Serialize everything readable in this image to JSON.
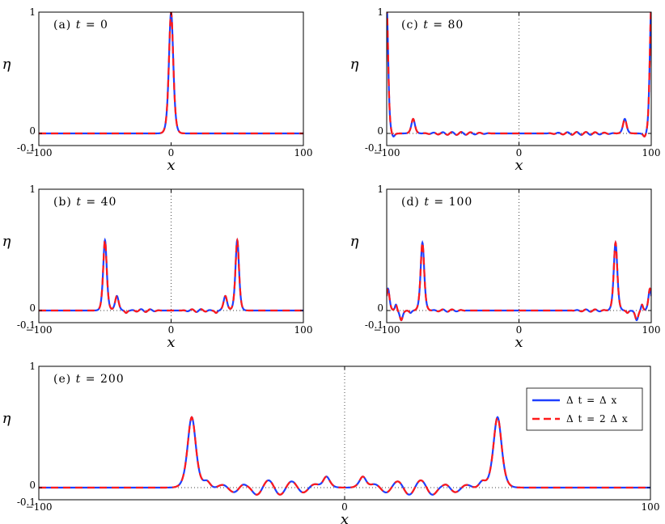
{
  "legend": {
    "series1": "Δ t  =  Δ x",
    "series2": "Δ t  =  2 Δ x"
  },
  "colors": {
    "series1": "#1f3fff",
    "series2": "#ff1a1a",
    "frame": "#000000"
  },
  "chart_data": [
    {
      "type": "line",
      "title": "(a)  t  =  0",
      "xlabel": "x",
      "ylabel": "η",
      "xlim": [
        -100,
        100
      ],
      "ylim": [
        -0.1,
        1
      ],
      "xticks": [
        "−100",
        "0",
        "100"
      ],
      "yticks": [
        "1",
        "0",
        "-0.1"
      ],
      "grid": false,
      "zero_lines": false,
      "waves": {
        "peaks": [
          {
            "x": 0,
            "a": 1.0,
            "w": 2.2
          }
        ],
        "ripple": null
      },
      "series": [
        {
          "name": "Δ t = Δ x"
        },
        {
          "name": "Δ t = 2 Δ x"
        }
      ]
    },
    {
      "type": "line",
      "title": "(b)  t  =  40",
      "xlabel": "x",
      "ylabel": "η",
      "xlim": [
        -100,
        100
      ],
      "ylim": [
        -0.1,
        1
      ],
      "xticks": [
        "−100",
        "0",
        "100"
      ],
      "yticks": [
        "1",
        "0",
        "-0.1"
      ],
      "grid": false,
      "zero_lines": true,
      "waves": {
        "peaks": [
          {
            "x": -50,
            "a": 0.58,
            "w": 1.8
          },
          {
            "x": 50,
            "a": 0.58,
            "w": 1.8
          },
          {
            "x": -41,
            "a": 0.12,
            "w": 1.8
          },
          {
            "x": 41,
            "a": 0.12,
            "w": 1.8
          },
          {
            "x": -34,
            "a": -0.02,
            "w": 1.3
          },
          {
            "x": 34,
            "a": -0.02,
            "w": 1.3
          }
        ],
        "ripple": {
          "a": 0.012,
          "k": 0.9,
          "start": 8,
          "end": 32
        }
      },
      "series": [
        {
          "name": "Δ t = Δ x"
        },
        {
          "name": "Δ t = 2 Δ x"
        }
      ]
    },
    {
      "type": "line",
      "title": "(c)  t  =  80",
      "xlabel": "x",
      "ylabel": "η",
      "xlim": [
        -100,
        100
      ],
      "ylim": [
        -0.1,
        1
      ],
      "xticks": [
        "−100",
        "0",
        "100"
      ],
      "yticks": [
        "1",
        "0",
        "-0.1"
      ],
      "grid": false,
      "zero_lines": true,
      "waves": {
        "peaks": [
          {
            "x": -100,
            "a": 1.05,
            "w": 1.5
          },
          {
            "x": 100,
            "a": 1.05,
            "w": 1.5
          },
          {
            "x": -80,
            "a": 0.12,
            "w": 1.8
          },
          {
            "x": 80,
            "a": 0.12,
            "w": 1.8
          },
          {
            "x": -95,
            "a": -0.03,
            "w": 1.4
          },
          {
            "x": 95,
            "a": -0.03,
            "w": 1.4
          }
        ],
        "ripple": {
          "a": 0.012,
          "k": 0.9,
          "start": 20,
          "end": 75
        }
      },
      "series": [
        {
          "name": "Δ t = Δ x"
        },
        {
          "name": "Δ t = 2 Δ x"
        }
      ]
    },
    {
      "type": "line",
      "title": "(d)  t  =  100",
      "xlabel": "x",
      "ylabel": "η",
      "xlim": [
        -100,
        100
      ],
      "ylim": [
        -0.1,
        1
      ],
      "xticks": [
        "−100",
        "0",
        "100"
      ],
      "yticks": [
        "1",
        "0",
        "-0.1"
      ],
      "grid": false,
      "zero_lines": true,
      "waves": {
        "peaks": [
          {
            "x": -73,
            "a": 0.56,
            "w": 1.8
          },
          {
            "x": 73,
            "a": 0.56,
            "w": 1.8
          },
          {
            "x": -99,
            "a": 0.18,
            "w": 1.5
          },
          {
            "x": 99,
            "a": 0.18,
            "w": 1.5
          },
          {
            "x": -93,
            "a": 0.05,
            "w": 1.0
          },
          {
            "x": 93,
            "a": 0.05,
            "w": 1.0
          },
          {
            "x": -89,
            "a": -0.08,
            "w": 1.5
          },
          {
            "x": 89,
            "a": -0.08,
            "w": 1.5
          },
          {
            "x": -82,
            "a": -0.02,
            "w": 1.2
          },
          {
            "x": 82,
            "a": -0.02,
            "w": 1.2
          }
        ],
        "ripple": {
          "a": 0.01,
          "k": 0.9,
          "start": 40,
          "end": 68
        }
      },
      "series": [
        {
          "name": "Δ t = Δ x"
        },
        {
          "name": "Δ t = 2 Δ x"
        }
      ]
    },
    {
      "type": "line",
      "title": "(e)  t  =  200",
      "xlabel": "x",
      "ylabel": "η",
      "xlim": [
        -100,
        100
      ],
      "ylim": [
        -0.1,
        1
      ],
      "xticks": [
        "−100",
        "0",
        "100"
      ],
      "yticks": [
        "1",
        "0",
        "-0.1"
      ],
      "grid": false,
      "zero_lines": true,
      "legend_position": "top-right",
      "waves": {
        "peaks": [
          {
            "x": -50,
            "a": 0.58,
            "w": 1.8
          },
          {
            "x": 50,
            "a": 0.58,
            "w": 1.8
          },
          {
            "x": -45,
            "a": 0.05,
            "w": 1.5
          },
          {
            "x": 45,
            "a": 0.05,
            "w": 1.5
          },
          {
            "x": -32,
            "a": -0.03,
            "w": 1.5
          },
          {
            "x": 32,
            "a": -0.03,
            "w": 1.5
          },
          {
            "x": -6,
            "a": 0.1,
            "w": 1.5
          },
          {
            "x": 6,
            "a": 0.1,
            "w": 1.5
          }
        ],
        "ripple": {
          "a": 0.06,
          "k": 0.82,
          "start": 4,
          "end": 45
        }
      },
      "series": [
        {
          "name": "Δ t = Δ x"
        },
        {
          "name": "Δ t = 2 Δ x"
        }
      ]
    }
  ]
}
